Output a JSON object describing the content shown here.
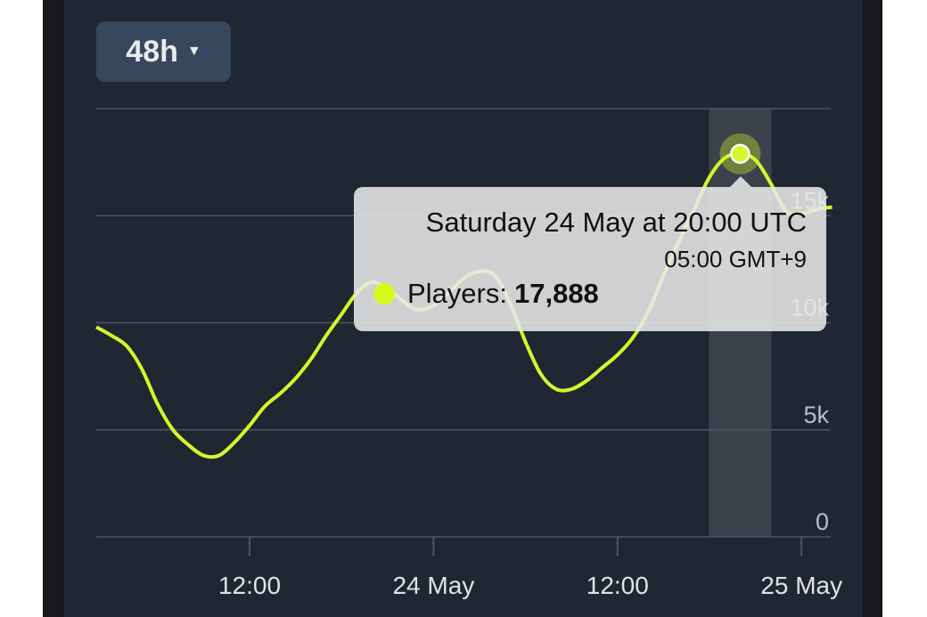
{
  "range_selector": {
    "label": "48h",
    "caret_icon": "caret-down-icon"
  },
  "colors": {
    "line": "#d7f52a",
    "background": "#1f2733",
    "grid": "#4a5466",
    "highlight": "#3b424c"
  },
  "chart_data": {
    "type": "line",
    "title": "",
    "xlabel": "",
    "ylabel": "",
    "ylim": [
      0,
      20000
    ],
    "grid": true,
    "y_ticks": [
      {
        "value": 0,
        "label": "0"
      },
      {
        "value": 5000,
        "label": "5k"
      },
      {
        "value": 10000,
        "label": "10k"
      },
      {
        "value": 15000,
        "label": "15k"
      }
    ],
    "x_ticks": [
      {
        "hour": 10,
        "label": "12:00"
      },
      {
        "hour": 22,
        "label": "24 May"
      },
      {
        "hour": 34,
        "label": "12:00"
      },
      {
        "hour": 46,
        "label": "25 May"
      }
    ],
    "x_start": "23 May 02:00 UTC",
    "x_step": "1 hour",
    "series": [
      {
        "name": "Players",
        "values": [
          9800,
          9400,
          8900,
          7800,
          6200,
          5000,
          4300,
          3800,
          3800,
          4400,
          5200,
          6100,
          6700,
          7400,
          8300,
          9400,
          10400,
          11400,
          11900,
          11600,
          11000,
          10600,
          10800,
          11400,
          12100,
          12400,
          12200,
          10900,
          9100,
          7600,
          6900,
          6900,
          7300,
          7900,
          8500,
          9300,
          10500,
          12200,
          13800,
          15300,
          16800,
          17700,
          17888,
          17600,
          16500,
          15200,
          15100,
          15300,
          15400
        ]
      }
    ],
    "highlight_hour": 42
  },
  "tooltip": {
    "title": "Saturday 24 May at 20:00 UTC",
    "subtitle": "05:00 GMT+9",
    "series_label": "Players:",
    "value": "17,888"
  }
}
